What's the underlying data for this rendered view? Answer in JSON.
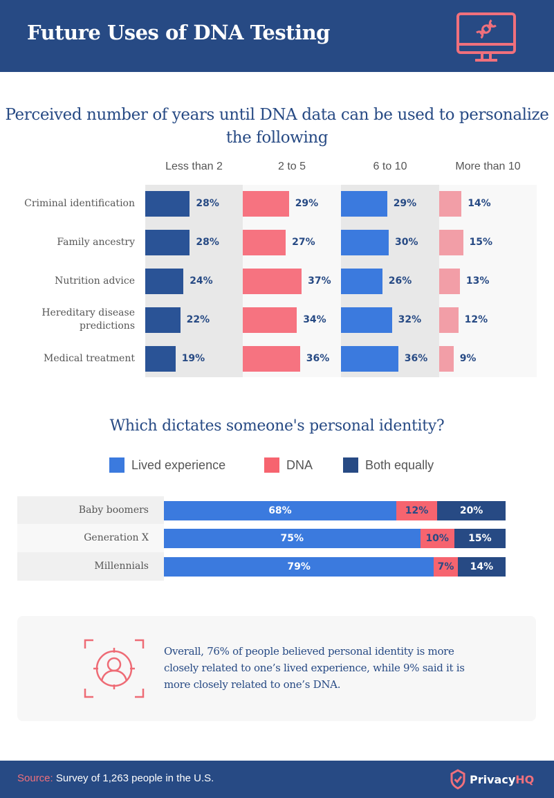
{
  "header": {
    "title": "Future Uses of DNA Testing",
    "icon": "monitor-dna-icon"
  },
  "colors": {
    "navy": "#274a84",
    "dark_blue_bar": "#2a5396",
    "coral": "#f67380",
    "bright_blue": "#3b7ade",
    "light_pink": "#f29ea7",
    "dna_red": "#f6646f"
  },
  "chart_data": [
    {
      "type": "bar",
      "orientation": "horizontal",
      "layout": "small-multiples",
      "title": "Perceived number of years until DNA data can be used to personalize the following",
      "categories": [
        "Criminal identification",
        "Family ancestry",
        "Nutrition advice",
        "Hereditary disease predictions",
        "Medical treatment"
      ],
      "series": [
        {
          "name": "Less than 2",
          "values": [
            28,
            28,
            24,
            22,
            19
          ],
          "labels": [
            "28%",
            "28%",
            "24%",
            "22%",
            "19%"
          ],
          "color": "#2a5396"
        },
        {
          "name": "2 to 5",
          "values": [
            29,
            27,
            37,
            34,
            36
          ],
          "labels": [
            "29%",
            "27%",
            "37%",
            "34%",
            "36%"
          ],
          "color": "#f67380"
        },
        {
          "name": "6 to 10",
          "values": [
            29,
            30,
            26,
            32,
            36
          ],
          "labels": [
            "29%",
            "30%",
            "26%",
            "32%",
            "36%"
          ],
          "color": "#3b7ade"
        },
        {
          "name": "More than 10",
          "values": [
            14,
            15,
            13,
            12,
            9
          ],
          "labels": [
            "14%",
            "15%",
            "13%",
            "12%",
            "9%"
          ],
          "color": "#f29ea7"
        }
      ],
      "xlabel": "",
      "ylabel": "",
      "unit": "%",
      "grid": false
    },
    {
      "type": "bar",
      "orientation": "horizontal",
      "layout": "stacked-100",
      "title": "Which dictates someone's personal identity?",
      "categories": [
        "Baby boomers",
        "Generation X",
        "Millennials"
      ],
      "series": [
        {
          "name": "Lived experience",
          "values": [
            68,
            75,
            79
          ],
          "labels": [
            "68%",
            "75%",
            "79%"
          ],
          "color": "#3b7ade"
        },
        {
          "name": "DNA",
          "values": [
            12,
            10,
            7
          ],
          "labels": [
            "12%",
            "10%",
            "7%"
          ],
          "color": "#f6646f"
        },
        {
          "name": "Both equally",
          "values": [
            20,
            15,
            14
          ],
          "labels": [
            "20%",
            "15%",
            "14%"
          ],
          "color": "#274a84"
        }
      ],
      "legend": "top-center",
      "unit": "%",
      "grid": false
    }
  ],
  "callout": {
    "icon": "person-target-icon",
    "text": "Overall, 76% of people believed personal identity is more closely related to one’s lived experience, while 9% said it is more closely related to one’s DNA."
  },
  "footer": {
    "source_key": "Source:",
    "source_text": " Survey of 1,263 people in the U.S.",
    "brand_name": "Privacy",
    "brand_suffix": "HQ",
    "brand_icon": "shield-check-icon"
  }
}
